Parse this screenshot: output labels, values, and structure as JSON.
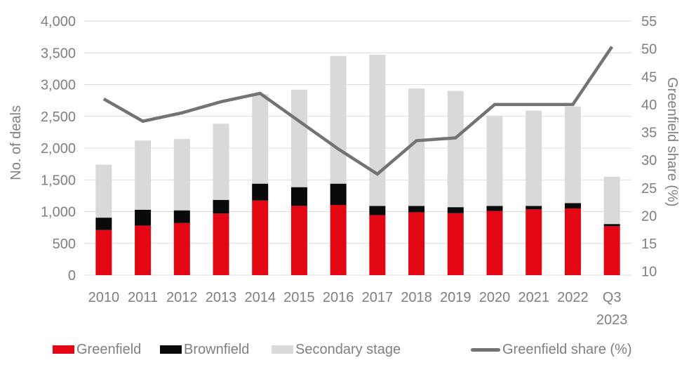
{
  "chart_data": {
    "type": "combo-stacked-bar-line",
    "title": "",
    "categories": [
      "2010",
      "2011",
      "2012",
      "2013",
      "2014",
      "2015",
      "2016",
      "2017",
      "2018",
      "2019",
      "2020",
      "2021",
      "2022",
      "Q3 2023"
    ],
    "series": [
      {
        "name": "Greenfield",
        "type": "bar",
        "color": "#e30613",
        "values": [
          710,
          780,
          820,
          970,
          1175,
          1090,
          1105,
          945,
          990,
          975,
          1010,
          1035,
          1050,
          770
        ]
      },
      {
        "name": "Brownfield",
        "type": "bar",
        "color": "#0a0a0a",
        "values": [
          195,
          250,
          200,
          215,
          265,
          295,
          335,
          145,
          100,
          95,
          80,
          55,
          85,
          35
        ]
      },
      {
        "name": "Secondary stage",
        "type": "bar",
        "color": "#d9d9d9",
        "values": [
          835,
          1090,
          1125,
          1200,
          1410,
          1535,
          2010,
          2380,
          1850,
          1830,
          1420,
          1500,
          1520,
          745
        ]
      },
      {
        "name": "Greenfield share (%)",
        "type": "line",
        "axis": "right",
        "color": "#737373",
        "values": [
          41,
          37,
          38.5,
          40.5,
          42,
          37,
          32,
          27.5,
          33.5,
          34,
          40,
          40,
          40,
          50.4
        ]
      }
    ],
    "left_axis": {
      "label": "No. of deals",
      "min": 0,
      "max": 4000,
      "step": 500,
      "tick_labels": [
        "0",
        "500",
        "1,000",
        "1,500",
        "2,000",
        "2,500",
        "3,000",
        "3,500",
        "4,000"
      ]
    },
    "right_axis": {
      "label": "Greenfield share (%)",
      "min": 10,
      "max": 55,
      "step": 5,
      "tick_labels": [
        "10",
        "15",
        "20",
        "25",
        "30",
        "35",
        "40",
        "45",
        "50",
        "55"
      ]
    },
    "grid": true,
    "legend_position": "bottom"
  },
  "legend": {
    "items": [
      {
        "label": "Greenfield",
        "color": "#e30613",
        "swatch": "rect"
      },
      {
        "label": "Brownfield",
        "color": "#0a0a0a",
        "swatch": "rect"
      },
      {
        "label": "Secondary stage",
        "color": "#d9d9d9",
        "swatch": "rect"
      },
      {
        "label": "Greenfield share (%)",
        "color": "#737373",
        "swatch": "line"
      }
    ]
  },
  "colors": {
    "grid": "#dcdcdc",
    "text": "#7f7f7f",
    "background": "#ffffff",
    "greenfield_red": "#e30613",
    "brownfield_black": "#0a0a0a",
    "secondary_gray": "#d9d9d9",
    "share_line_gray": "#737373"
  }
}
